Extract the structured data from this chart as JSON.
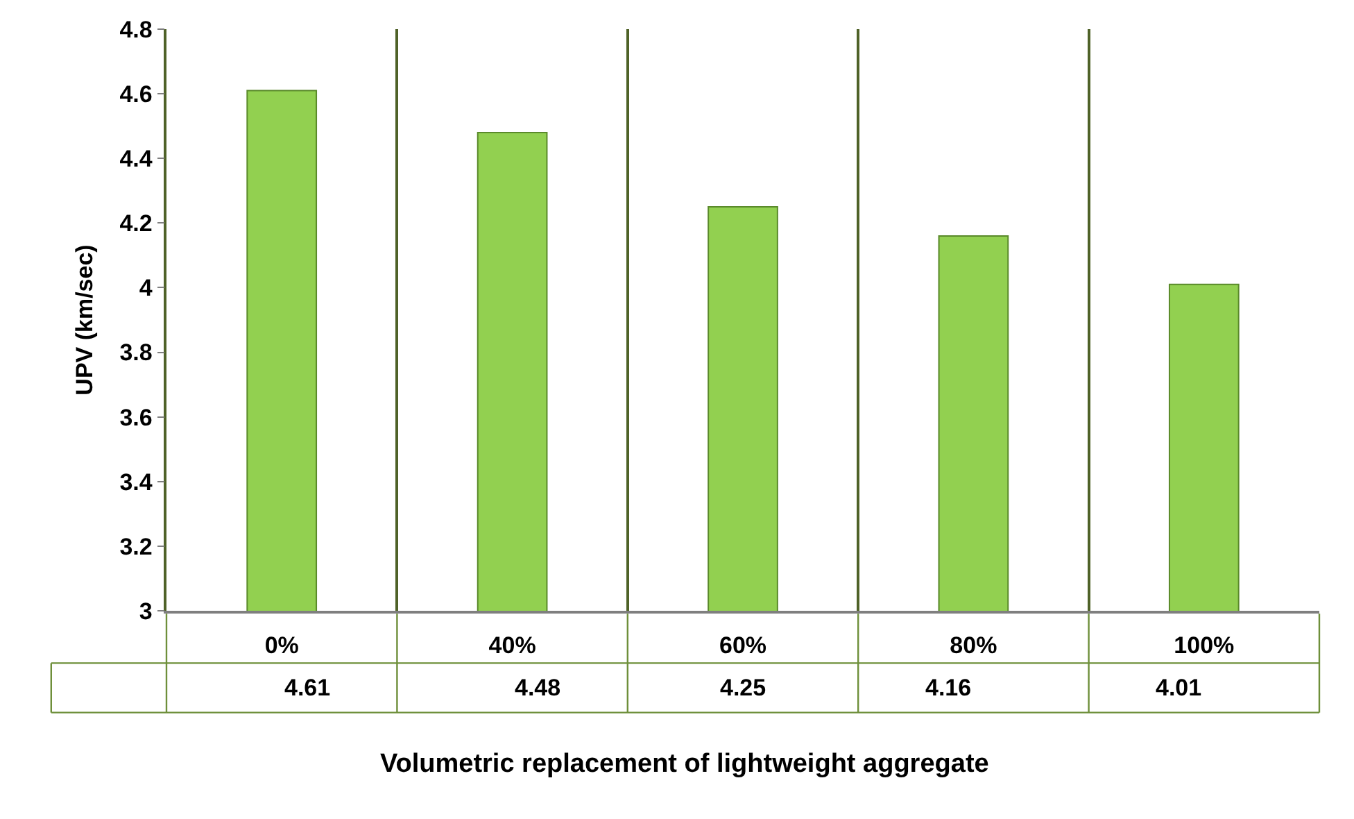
{
  "chart_data": {
    "type": "bar",
    "xlabel": "Volumetric replacement of lightweight aggregate",
    "ylabel": "UPV (km/sec)",
    "categories": [
      "0%",
      "40%",
      "60%",
      "80%",
      "100%"
    ],
    "values": [
      4.61,
      4.48,
      4.25,
      4.16,
      4.01
    ],
    "color": "#92d050",
    "ylim": [
      3,
      4.8
    ],
    "yticks": [
      3,
      3.2,
      3.4,
      3.6,
      3.8,
      4,
      4.2,
      4.4,
      4.6,
      4.8
    ],
    "grid": "x",
    "data_labels": true
  }
}
